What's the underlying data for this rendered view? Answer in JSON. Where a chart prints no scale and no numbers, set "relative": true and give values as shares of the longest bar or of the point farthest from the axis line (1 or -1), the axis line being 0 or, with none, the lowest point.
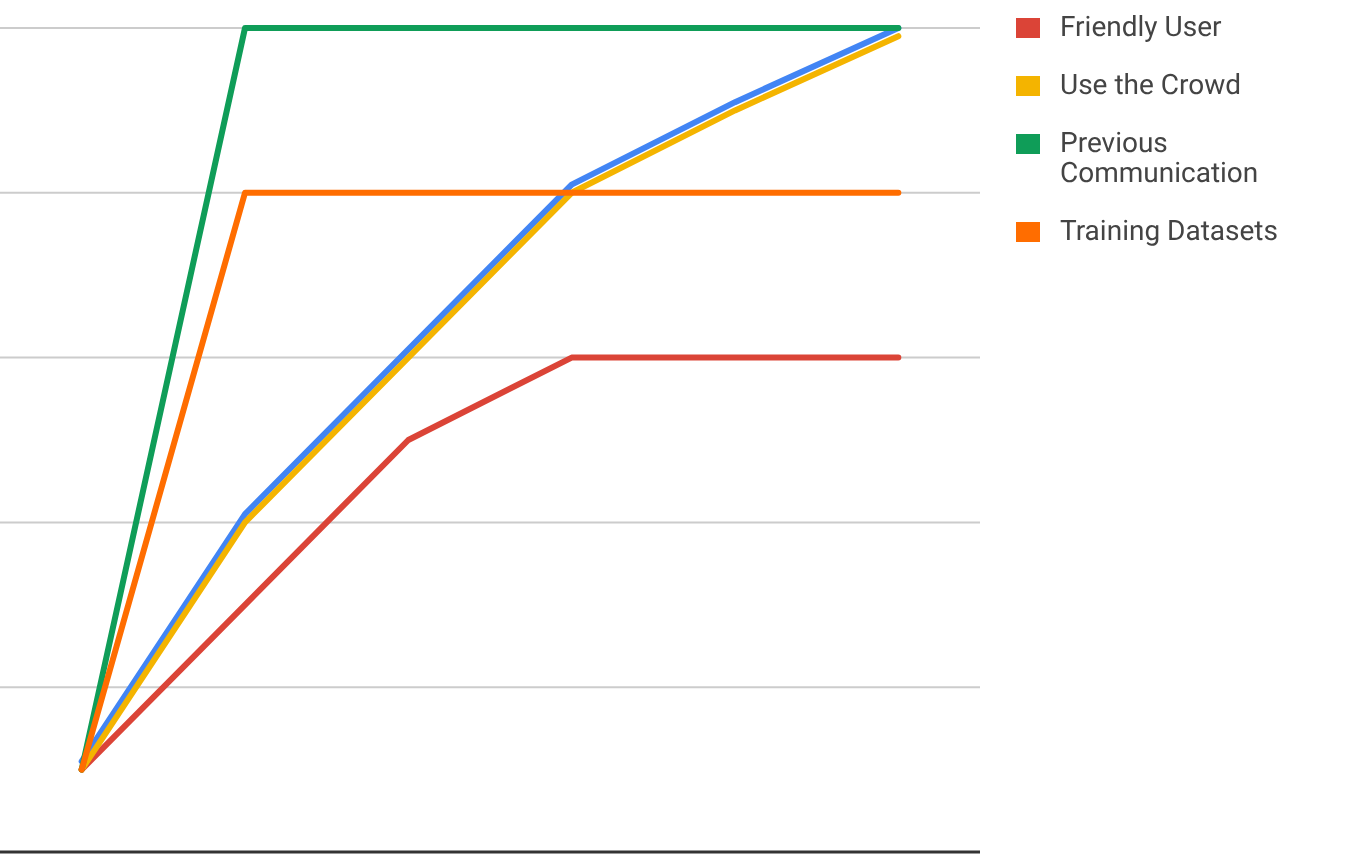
{
  "chart_data": {
    "type": "line",
    "relative": true,
    "categories": [
      null,
      null,
      null,
      null,
      null,
      null
    ],
    "grid": true,
    "legend": "top right",
    "marker": "none",
    "line_style": "solid",
    "series": [
      {
        "color": "#4285f4",
        "values": [
          0.11,
          0.41,
          0.61,
          0.81,
          0.91,
          1
        ]
      },
      {
        "name": "Friendly User",
        "color": "#db4437",
        "values": [
          0.1,
          0.3,
          0.5,
          0.6,
          0.6,
          0.6
        ]
      },
      {
        "name": "Use the Crowd",
        "color": "#f4b400",
        "values": [
          0.1,
          0.4,
          0.6,
          0.8,
          0.9,
          0.99
        ]
      },
      {
        "name": "Previous Communication",
        "color": "#0f9d58",
        "values": [
          0.1,
          1,
          1,
          1,
          1,
          1
        ]
      },
      {
        "name": "Training Datasets",
        "color": "#ff6d00",
        "values": [
          0.1,
          0.8,
          0.8,
          0.8,
          0.8,
          0.8
        ]
      }
    ]
  }
}
